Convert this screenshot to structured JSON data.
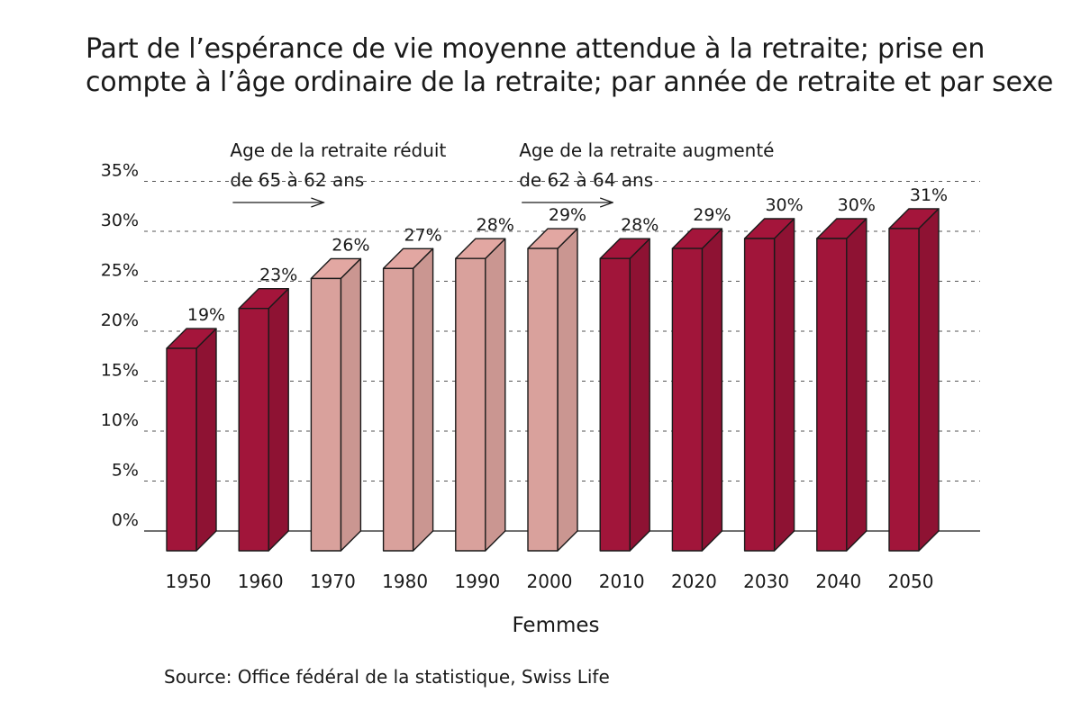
{
  "colors": {
    "dark_bar": "#a1153a",
    "light_bar": "#d9a19c",
    "outline": "#1a1a1a",
    "grid": "#555555"
  },
  "chart_data": {
    "type": "bar",
    "title_lines": [
      "Part de l’espérance de vie moyenne attendue à la retraite; prise en",
      "compte à l’âge ordinaire de la retraite; par année de retraite et par sexe"
    ],
    "xlabel": "Femmes",
    "ylabel": "",
    "ylim": [
      0,
      35
    ],
    "yticks": [
      {
        "value": 35,
        "label": "35%"
      },
      {
        "value": 30,
        "label": "30%"
      },
      {
        "value": 25,
        "label": "25%"
      },
      {
        "value": 20,
        "label": "20%"
      },
      {
        "value": 15,
        "label": "15%"
      },
      {
        "value": 10,
        "label": "10%"
      },
      {
        "value": 5,
        "label": "5%"
      },
      {
        "value": 0,
        "label": "0%"
      }
    ],
    "grid": true,
    "categories": [
      "1950",
      "1960",
      "1970",
      "1980",
      "1990",
      "2000",
      "2010",
      "2020",
      "2030",
      "2040",
      "2050"
    ],
    "values": [
      19,
      23,
      26,
      27,
      28,
      29,
      28,
      29,
      30,
      30,
      31
    ],
    "value_labels": [
      "19%",
      "23%",
      "26%",
      "27%",
      "28%",
      "29%",
      "28%",
      "29%",
      "30%",
      "30%",
      "31%"
    ],
    "highlight": [
      "dark",
      "dark",
      "light",
      "light",
      "light",
      "light",
      "dark",
      "dark",
      "dark",
      "dark",
      "dark"
    ],
    "annotations": [
      {
        "lines": [
          "Age de la retraite réduit",
          "de 65 à 62 ans"
        ],
        "anchor_category": "1970",
        "arrow": "right"
      },
      {
        "lines": [
          "Age de la retraite augmenté",
          "de 62 à 64 ans"
        ],
        "anchor_category": "2010",
        "arrow": "right"
      }
    ],
    "source": "Source: Office fédéral de la statistique, Swiss Life"
  }
}
